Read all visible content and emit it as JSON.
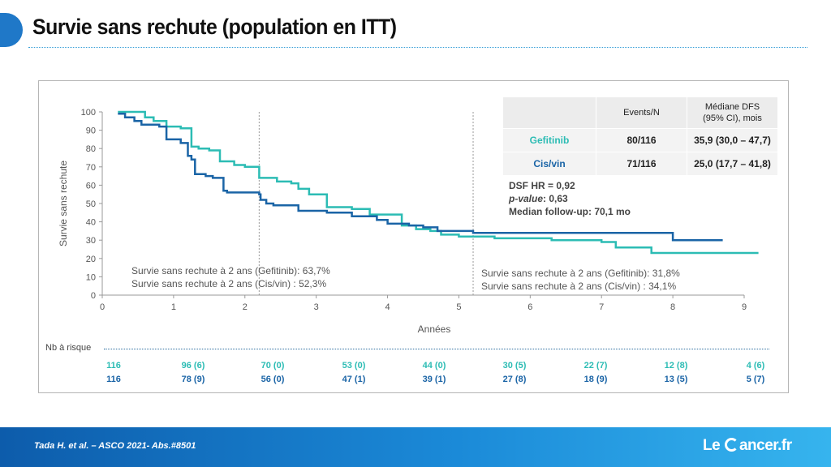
{
  "title": "Survie sans rechute (population en ITT)",
  "chart_data": {
    "type": "line",
    "title": "",
    "xlabel": "Années",
    "ylabel": "Survie sans rechute",
    "xlim": [
      0,
      9
    ],
    "ylim": [
      0,
      100
    ],
    "x_ticks": [
      "0",
      "1",
      "2",
      "3",
      "4",
      "5",
      "6",
      "7",
      "8",
      "9"
    ],
    "y_ticks": [
      "0",
      "10",
      "20",
      "30",
      "40",
      "50",
      "60",
      "70",
      "80",
      "90",
      "100"
    ],
    "reference_lines_x": [
      2.2,
      5.2
    ],
    "series": [
      {
        "name": "Gefitinib",
        "color": "#2cbcb4",
        "points": [
          [
            0.22,
            100
          ],
          [
            0.6,
            100
          ],
          [
            0.6,
            97
          ],
          [
            0.72,
            97
          ],
          [
            0.72,
            95
          ],
          [
            0.9,
            95
          ],
          [
            0.9,
            92
          ],
          [
            1.1,
            92
          ],
          [
            1.1,
            91
          ],
          [
            1.25,
            91
          ],
          [
            1.25,
            81
          ],
          [
            1.35,
            81
          ],
          [
            1.35,
            80
          ],
          [
            1.5,
            80
          ],
          [
            1.5,
            79
          ],
          [
            1.65,
            79
          ],
          [
            1.65,
            73
          ],
          [
            1.85,
            73
          ],
          [
            1.85,
            71
          ],
          [
            2.0,
            71
          ],
          [
            2.0,
            70
          ],
          [
            2.2,
            70
          ],
          [
            2.2,
            64
          ],
          [
            2.45,
            64
          ],
          [
            2.45,
            62
          ],
          [
            2.65,
            62
          ],
          [
            2.65,
            61
          ],
          [
            2.75,
            61
          ],
          [
            2.75,
            58
          ],
          [
            2.9,
            58
          ],
          [
            2.9,
            55
          ],
          [
            3.15,
            55
          ],
          [
            3.15,
            48
          ],
          [
            3.5,
            48
          ],
          [
            3.5,
            47
          ],
          [
            3.75,
            47
          ],
          [
            3.75,
            44
          ],
          [
            4.2,
            44
          ],
          [
            4.2,
            38
          ],
          [
            4.4,
            38
          ],
          [
            4.4,
            36
          ],
          [
            4.6,
            36
          ],
          [
            4.6,
            35
          ],
          [
            4.75,
            35
          ],
          [
            4.75,
            33
          ],
          [
            5.0,
            33
          ],
          [
            5.0,
            32
          ],
          [
            5.5,
            32
          ],
          [
            5.5,
            31
          ],
          [
            6.3,
            31
          ],
          [
            6.3,
            30
          ],
          [
            7.0,
            30
          ],
          [
            7.0,
            29
          ],
          [
            7.2,
            29
          ],
          [
            7.2,
            26
          ],
          [
            7.7,
            26
          ],
          [
            7.7,
            23
          ],
          [
            9.2,
            23
          ]
        ]
      },
      {
        "name": "Cis/vin",
        "color": "#1a64a6",
        "points": [
          [
            0.22,
            99
          ],
          [
            0.32,
            99
          ],
          [
            0.32,
            97
          ],
          [
            0.45,
            97
          ],
          [
            0.45,
            95
          ],
          [
            0.55,
            95
          ],
          [
            0.55,
            93
          ],
          [
            0.8,
            93
          ],
          [
            0.8,
            92
          ],
          [
            0.9,
            92
          ],
          [
            0.9,
            85
          ],
          [
            1.1,
            85
          ],
          [
            1.1,
            83
          ],
          [
            1.2,
            83
          ],
          [
            1.2,
            76
          ],
          [
            1.25,
            76
          ],
          [
            1.25,
            74
          ],
          [
            1.3,
            74
          ],
          [
            1.3,
            66
          ],
          [
            1.45,
            66
          ],
          [
            1.45,
            65
          ],
          [
            1.55,
            65
          ],
          [
            1.55,
            64
          ],
          [
            1.7,
            64
          ],
          [
            1.7,
            57
          ],
          [
            1.75,
            57
          ],
          [
            1.75,
            56
          ],
          [
            2.2,
            56
          ],
          [
            2.2,
            55
          ],
          [
            2.22,
            55
          ],
          [
            2.22,
            52
          ],
          [
            2.3,
            52
          ],
          [
            2.3,
            50
          ],
          [
            2.4,
            50
          ],
          [
            2.4,
            49
          ],
          [
            2.75,
            49
          ],
          [
            2.75,
            46
          ],
          [
            3.15,
            46
          ],
          [
            3.15,
            45
          ],
          [
            3.5,
            45
          ],
          [
            3.5,
            43
          ],
          [
            3.85,
            43
          ],
          [
            3.85,
            41
          ],
          [
            4.0,
            41
          ],
          [
            4.0,
            39
          ],
          [
            4.3,
            39
          ],
          [
            4.3,
            38
          ],
          [
            4.5,
            38
          ],
          [
            4.5,
            37
          ],
          [
            4.7,
            37
          ],
          [
            4.7,
            35
          ],
          [
            5.2,
            35
          ],
          [
            5.2,
            34
          ],
          [
            8.0,
            34
          ],
          [
            8.0,
            30
          ],
          [
            8.7,
            30
          ]
        ]
      }
    ],
    "table": {
      "headers": [
        "",
        "Events/N",
        "Médiane DFS\n(95% CI), mois"
      ],
      "rows": [
        {
          "arm": "Gefitinib",
          "events": "80/116",
          "median": "35,9 (30,0 – 47,7)",
          "color": "#2cbcb4"
        },
        {
          "arm": "Cis/vin",
          "events": "71/116",
          "median": "25,0 (17,7 – 41,8)",
          "color": "#1a64a6"
        }
      ]
    },
    "hr_text": "DSF HR = 0,92",
    "pvalue_label": "p-value",
    "pvalue_rest": ": 0,63",
    "followup_text": "Median follow-up: 70,1 mo",
    "annotations": {
      "two_year": [
        "Survie sans rechute à 2 ans (Gefitinib): 63,7%",
        "Survie sans rechute à 2 ans (Cis/vin) : 52,3%"
      ],
      "five_year": [
        "Survie sans rechute à 2 ans (Gefitinib): 31,8%",
        "Survie sans rechute à 2 ans (Cis/vin) : 34,1%"
      ]
    },
    "at_risk": {
      "label": "Nb à risque",
      "gefitinib": [
        "116",
        "96 (6)",
        "70 (0)",
        "53 (0)",
        "44 (0)",
        "30 (5)",
        "22 (7)",
        "12 (8)",
        "4 (6)"
      ],
      "cisvin": [
        "116",
        "78 (9)",
        "56 (0)",
        "47 (1)",
        "39 (1)",
        "27 (8)",
        "18 (9)",
        "13 (5)",
        "5 (7)"
      ],
      "gefitinib_color": "#2cbcb4",
      "cisvin_color": "#1a64a6"
    }
  },
  "footer": {
    "citation": "Tada H. et al. – ASCO 2021- Abs.#8501",
    "logo_left": "Le",
    "logo_right": "ancer.fr"
  }
}
